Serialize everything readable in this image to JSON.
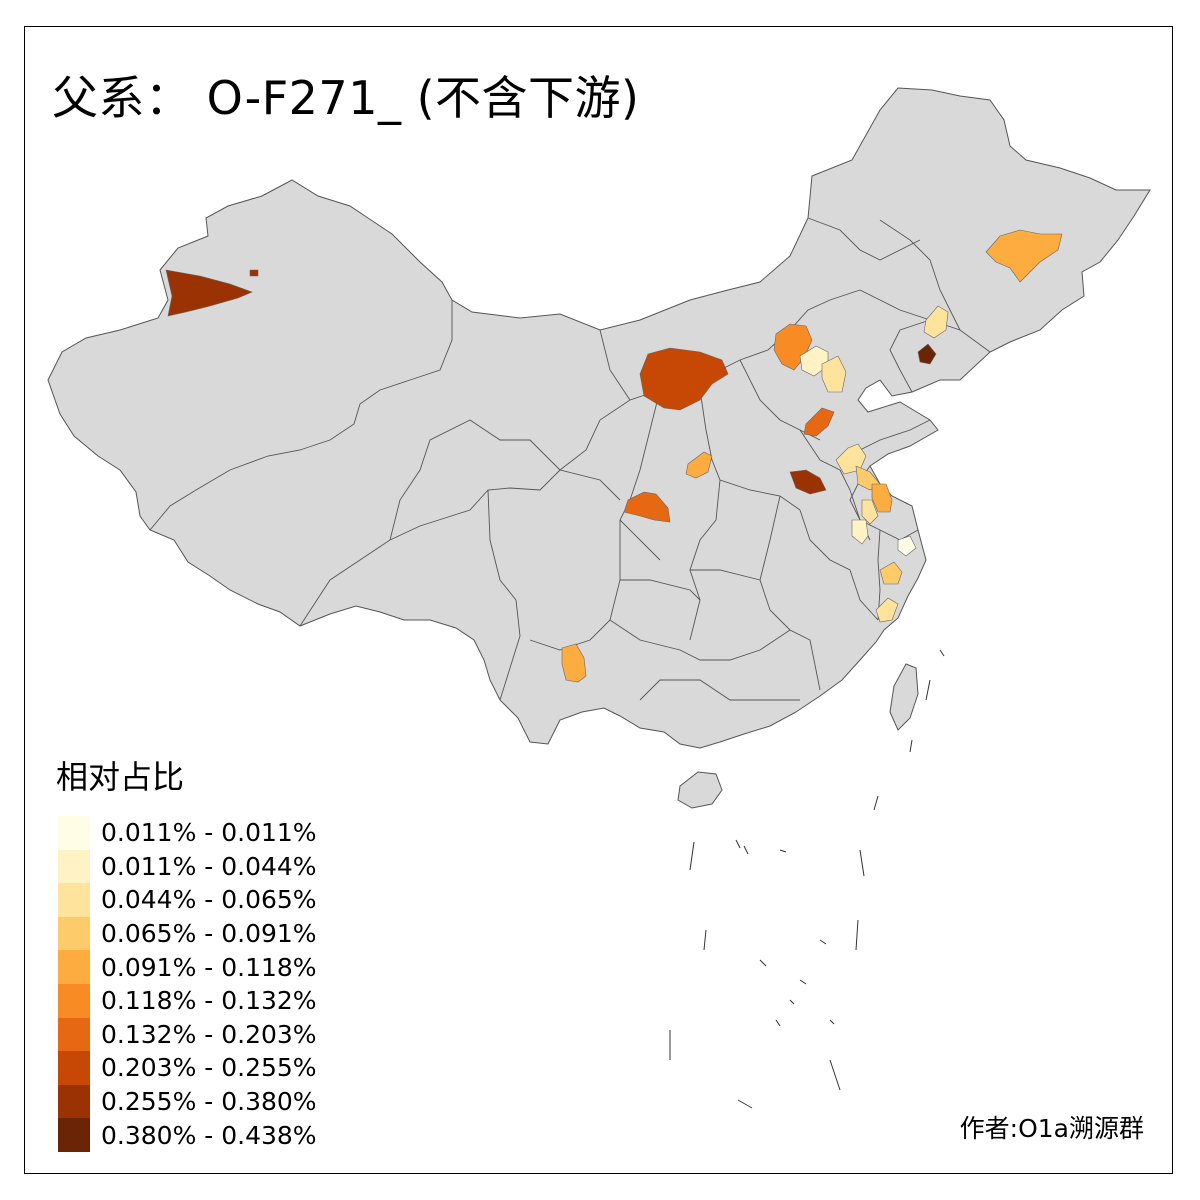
{
  "title": "父系： O-F271_ (不含下游)",
  "legend": {
    "title": "相对占比",
    "classes": [
      {
        "label": "0.011% - 0.011%",
        "color": "#fffde6"
      },
      {
        "label": "0.011% - 0.044%",
        "color": "#fff3c6"
      },
      {
        "label": "0.044% - 0.065%",
        "color": "#fee39c"
      },
      {
        "label": "0.065% - 0.091%",
        "color": "#fecb6b"
      },
      {
        "label": "0.091% - 0.118%",
        "color": "#fdac3f"
      },
      {
        "label": "0.118% - 0.132%",
        "color": "#f88b24"
      },
      {
        "label": "0.132% - 0.203%",
        "color": "#e66812"
      },
      {
        "label": "0.203% - 0.255%",
        "color": "#c74805"
      },
      {
        "label": "0.255% - 0.380%",
        "color": "#9a3204"
      },
      {
        "label": "0.380% - 0.438%",
        "color": "#6b2405"
      }
    ]
  },
  "credit": "作者:O1a溯源群",
  "colors": {
    "land": "#d9d9d9",
    "border": "#555555",
    "frame": "#000000"
  }
}
